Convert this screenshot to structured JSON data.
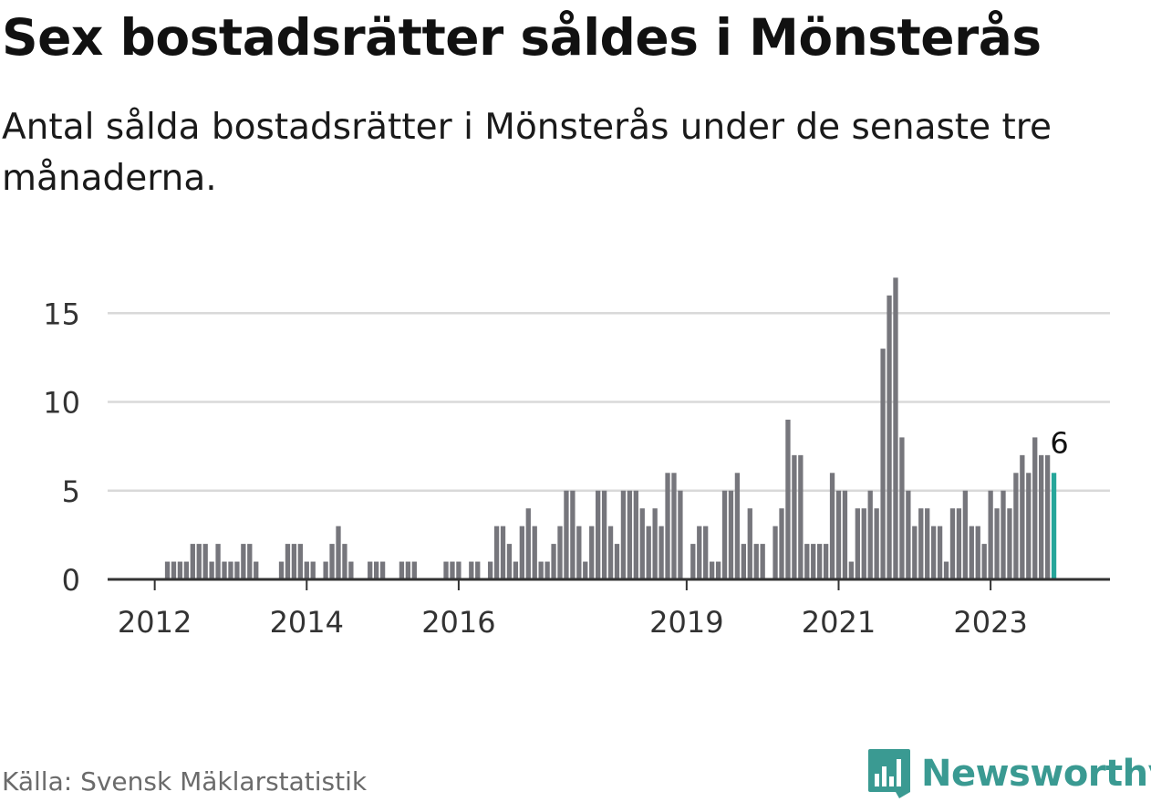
{
  "header": {
    "title": "Sex bostadsrätter såldes i Mönsterås",
    "subtitle": "Antal sålda bostadsrätter i Mönsterås under de senaste tre månaderna."
  },
  "footer": {
    "source": "Källa: Svensk Mäklarstatistik",
    "brand": "Newsworthy"
  },
  "colors": {
    "bar": "#76767c",
    "highlight": "#26a69a",
    "grid": "#d9d9d9",
    "axis": "#333333",
    "brand": "#3a9a92"
  },
  "chart_data": {
    "type": "bar",
    "title": "Sex bostadsrätter såldes i Mönsterås",
    "xlabel": "",
    "ylabel": "",
    "ylim": [
      0,
      17
    ],
    "yticks": [
      0,
      5,
      10,
      15
    ],
    "grid": true,
    "start": "2012-01",
    "xtick_labels": [
      {
        "label": "2012",
        "index": 0
      },
      {
        "label": "2014",
        "index": 24
      },
      {
        "label": "2016",
        "index": 48
      },
      {
        "label": "2019",
        "index": 84
      },
      {
        "label": "2021",
        "index": 108
      },
      {
        "label": "2023",
        "index": 132
      }
    ],
    "values": [
      0,
      0,
      1,
      1,
      1,
      1,
      2,
      2,
      2,
      1,
      2,
      1,
      1,
      1,
      2,
      2,
      1,
      0,
      0,
      0,
      1,
      2,
      2,
      2,
      1,
      1,
      0,
      1,
      2,
      3,
      2,
      1,
      0,
      0,
      1,
      1,
      1,
      0,
      0,
      1,
      1,
      1,
      0,
      0,
      0,
      0,
      1,
      1,
      1,
      0,
      1,
      1,
      0,
      1,
      3,
      3,
      2,
      1,
      3,
      4,
      3,
      1,
      1,
      2,
      3,
      5,
      5,
      3,
      1,
      3,
      5,
      5,
      3,
      2,
      5,
      5,
      5,
      4,
      3,
      4,
      3,
      6,
      6,
      5,
      0,
      2,
      3,
      3,
      1,
      1,
      5,
      5,
      6,
      2,
      4,
      2,
      2,
      0,
      3,
      4,
      9,
      7,
      7,
      2,
      2,
      2,
      2,
      6,
      5,
      5,
      1,
      4,
      4,
      5,
      4,
      13,
      16,
      17,
      8,
      5,
      3,
      4,
      4,
      3,
      3,
      1,
      4,
      4,
      5,
      3,
      3,
      2,
      5,
      4,
      5,
      4,
      6,
      7,
      6,
      8,
      7,
      7,
      6
    ],
    "highlight_last": true,
    "annotation": {
      "text": "6",
      "index": 142
    }
  }
}
